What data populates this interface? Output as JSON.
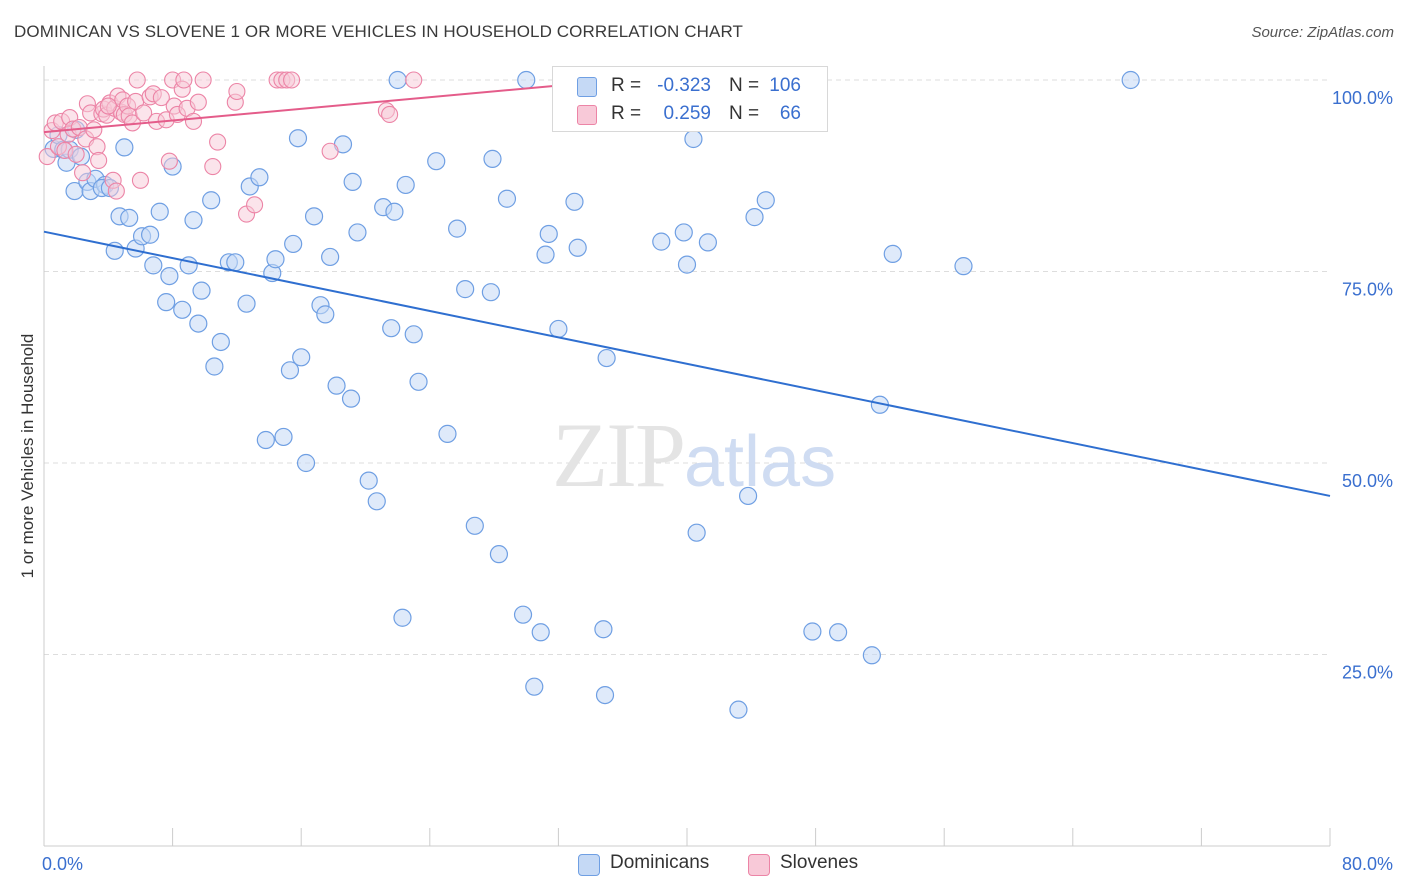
{
  "title": "DOMINICAN VS SLOVENE 1 OR MORE VEHICLES IN HOUSEHOLD CORRELATION CHART",
  "source": "Source: ZipAtlas.com",
  "watermark": {
    "zip": "ZIP",
    "atlas": "atlas"
  },
  "colors": {
    "blue": "#6f9fe3",
    "blue_fill": "#c5d9f5",
    "blue_line": "#2f6fd0",
    "pink": "#ec84a6",
    "pink_fill": "#f8c9d8",
    "pink_line": "#e45c8a",
    "value_text": "#3a6fcf",
    "grid": "#dddddd"
  },
  "legend_top": {
    "rows": [
      {
        "r_label": "R =",
        "r_value": "-0.323",
        "n_label": "N =",
        "n_value": "106"
      },
      {
        "r_label": "R =",
        "r_value": "0.259",
        "n_label": "N =",
        "n_value": "66"
      }
    ]
  },
  "legend_bottom": [
    {
      "label": "Dominicans"
    },
    {
      "label": "Slovenes"
    }
  ],
  "chart_data": {
    "type": "scatter",
    "title": "DOMINICAN VS SLOVENE 1 OR MORE VEHICLES IN HOUSEHOLD CORRELATION CHART",
    "xlabel": "",
    "ylabel": "1 or more Vehicles in Household",
    "xlim": [
      0,
      80
    ],
    "ylim": [
      0,
      100
    ],
    "x_tick_labels": [
      "0.0%",
      "80.0%"
    ],
    "y_tick_labels": [
      "100.0%",
      "75.0%",
      "50.0%",
      "25.0%"
    ],
    "y_ticks": [
      100,
      75,
      50,
      25
    ],
    "grid": true,
    "legend_placement": "bottom-center",
    "series": [
      {
        "name": "Dominicans",
        "r": -0.323,
        "n": 106,
        "trend": {
          "x": [
            0,
            80
          ],
          "y": [
            80.2,
            45.7
          ]
        },
        "points": [
          [
            0.6,
            91.0
          ],
          [
            0.9,
            92.8
          ],
          [
            1.2,
            90.9
          ],
          [
            1.4,
            89.2
          ],
          [
            1.6,
            90.9
          ],
          [
            1.9,
            85.5
          ],
          [
            2.3,
            90.0
          ],
          [
            2.7,
            86.7
          ],
          [
            2.9,
            85.5
          ],
          [
            3.2,
            87.1
          ],
          [
            3.8,
            86.3
          ],
          [
            3.6,
            85.9
          ],
          [
            4.1,
            85.9
          ],
          [
            4.4,
            77.7
          ],
          [
            4.7,
            82.2
          ],
          [
            5.3,
            82.0
          ],
          [
            5.7,
            78.0
          ],
          [
            6.1,
            79.6
          ],
          [
            6.6,
            79.8
          ],
          [
            6.8,
            75.8
          ],
          [
            7.2,
            82.8
          ],
          [
            7.6,
            71.0
          ],
          [
            7.8,
            74.4
          ],
          [
            8.0,
            88.7
          ],
          [
            8.6,
            70.0
          ],
          [
            9.0,
            75.8
          ],
          [
            9.3,
            81.7
          ],
          [
            9.6,
            68.2
          ],
          [
            10.4,
            84.3
          ],
          [
            10.6,
            62.6
          ],
          [
            11.0,
            65.8
          ],
          [
            11.5,
            76.2
          ],
          [
            11.9,
            76.2
          ],
          [
            12.6,
            70.8
          ],
          [
            12.8,
            86.1
          ],
          [
            13.4,
            87.3
          ],
          [
            13.8,
            53.0
          ],
          [
            14.2,
            74.8
          ],
          [
            14.4,
            76.6
          ],
          [
            14.9,
            53.4
          ],
          [
            15.3,
            62.1
          ],
          [
            15.5,
            78.6
          ],
          [
            15.8,
            92.4
          ],
          [
            16.3,
            50.0
          ],
          [
            16.8,
            82.2
          ],
          [
            17.2,
            70.6
          ],
          [
            17.5,
            69.4
          ],
          [
            17.8,
            76.9
          ],
          [
            18.2,
            60.1
          ],
          [
            18.6,
            91.6
          ],
          [
            19.1,
            58.4
          ],
          [
            19.2,
            86.7
          ],
          [
            19.5,
            80.1
          ],
          [
            20.2,
            47.7
          ],
          [
            20.7,
            45.0
          ],
          [
            21.1,
            83.4
          ],
          [
            21.6,
            67.6
          ],
          [
            21.8,
            82.8
          ],
          [
            22.0,
            100.0
          ],
          [
            22.3,
            29.8
          ],
          [
            22.5,
            86.3
          ],
          [
            23.0,
            66.8
          ],
          [
            23.3,
            60.6
          ],
          [
            24.4,
            89.4
          ],
          [
            25.1,
            53.8
          ],
          [
            25.7,
            80.6
          ],
          [
            26.2,
            72.7
          ],
          [
            26.8,
            41.8
          ],
          [
            27.9,
            89.7
          ],
          [
            27.8,
            72.3
          ],
          [
            28.3,
            38.1
          ],
          [
            28.8,
            84.5
          ],
          [
            29.8,
            30.2
          ],
          [
            30.5,
            20.8
          ],
          [
            30.9,
            27.9
          ],
          [
            31.2,
            77.2
          ],
          [
            31.4,
            79.9
          ],
          [
            32.0,
            67.5
          ],
          [
            33.0,
            84.1
          ],
          [
            33.2,
            78.1
          ],
          [
            34.8,
            28.3
          ],
          [
            34.9,
            19.7
          ],
          [
            35.0,
            63.7
          ],
          [
            38.4,
            78.9
          ],
          [
            39.8,
            80.1
          ],
          [
            40.0,
            75.9
          ],
          [
            40.4,
            92.3
          ],
          [
            40.6,
            40.9
          ],
          [
            41.3,
            78.8
          ],
          [
            43.2,
            17.8
          ],
          [
            43.8,
            45.7
          ],
          [
            44.2,
            82.1
          ],
          [
            44.9,
            84.3
          ],
          [
            47.8,
            28.0
          ],
          [
            49.4,
            27.9
          ],
          [
            51.5,
            24.9
          ],
          [
            52.0,
            57.6
          ],
          [
            52.8,
            77.3
          ],
          [
            57.2,
            75.7
          ],
          [
            67.6,
            100.0
          ],
          [
            30.0,
            100.0
          ],
          [
            37.0,
            100.0
          ],
          [
            2.0,
            93.5
          ],
          [
            5.0,
            91.2
          ],
          [
            9.8,
            72.5
          ],
          [
            16.0,
            63.8
          ]
        ]
      },
      {
        "name": "Slovenes",
        "r": 0.259,
        "n": 66,
        "trend": {
          "x": [
            0,
            40
          ],
          "y": [
            93.2,
            100.8
          ]
        },
        "points": [
          [
            0.2,
            90.0
          ],
          [
            0.5,
            93.4
          ],
          [
            0.7,
            94.4
          ],
          [
            0.9,
            91.3
          ],
          [
            1.1,
            94.6
          ],
          [
            1.3,
            90.8
          ],
          [
            1.5,
            92.9
          ],
          [
            1.6,
            95.1
          ],
          [
            1.8,
            93.6
          ],
          [
            2.0,
            90.3
          ],
          [
            2.2,
            93.8
          ],
          [
            2.4,
            87.9
          ],
          [
            2.6,
            92.3
          ],
          [
            2.7,
            96.9
          ],
          [
            2.9,
            95.7
          ],
          [
            3.1,
            93.5
          ],
          [
            3.3,
            91.3
          ],
          [
            3.4,
            89.5
          ],
          [
            3.6,
            95.6
          ],
          [
            3.7,
            96.2
          ],
          [
            3.9,
            95.4
          ],
          [
            4.1,
            97.0
          ],
          [
            4.3,
            86.9
          ],
          [
            4.4,
            96.3
          ],
          [
            4.5,
            85.5
          ],
          [
            4.6,
            97.9
          ],
          [
            4.8,
            95.8
          ],
          [
            4.9,
            97.4
          ],
          [
            5.0,
            95.5
          ],
          [
            5.2,
            96.6
          ],
          [
            5.3,
            95.3
          ],
          [
            5.5,
            94.4
          ],
          [
            5.7,
            97.2
          ],
          [
            5.8,
            100.0
          ],
          [
            6.0,
            86.9
          ],
          [
            6.2,
            95.7
          ],
          [
            6.6,
            97.8
          ],
          [
            6.8,
            98.2
          ],
          [
            7.0,
            94.6
          ],
          [
            7.3,
            97.7
          ],
          [
            7.6,
            94.8
          ],
          [
            7.8,
            89.4
          ],
          [
            8.0,
            100.0
          ],
          [
            8.1,
            96.6
          ],
          [
            8.3,
            95.5
          ],
          [
            8.6,
            98.8
          ],
          [
            8.7,
            100.0
          ],
          [
            8.9,
            96.3
          ],
          [
            9.3,
            94.6
          ],
          [
            9.6,
            97.1
          ],
          [
            9.9,
            100.0
          ],
          [
            10.5,
            88.7
          ],
          [
            10.8,
            91.9
          ],
          [
            11.9,
            97.1
          ],
          [
            12.0,
            98.5
          ],
          [
            12.6,
            82.5
          ],
          [
            13.1,
            83.7
          ],
          [
            14.5,
            100.0
          ],
          [
            14.8,
            100.0
          ],
          [
            15.1,
            100.0
          ],
          [
            15.4,
            100.0
          ],
          [
            17.8,
            90.7
          ],
          [
            21.3,
            96.0
          ],
          [
            21.5,
            95.5
          ],
          [
            23.0,
            100.0
          ],
          [
            4.0,
            96.6
          ]
        ]
      }
    ]
  }
}
